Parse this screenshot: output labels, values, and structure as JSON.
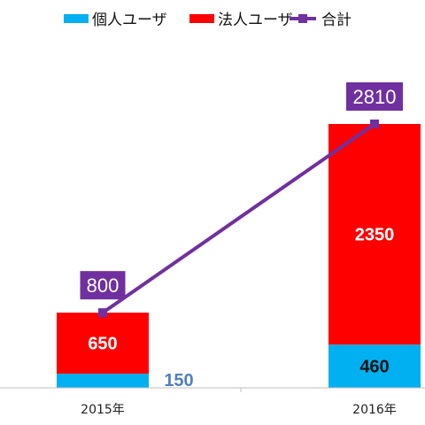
{
  "chart_data": {
    "type": "bar",
    "stacked": true,
    "title": "",
    "xlabel": "",
    "ylabel": "",
    "categories": [
      "2015年",
      "2016年"
    ],
    "series": [
      {
        "name": "個人ユーザ",
        "type": "bar",
        "color": "#00b0f0",
        "values": [
          150,
          460
        ]
      },
      {
        "name": "法人ユーザ",
        "type": "bar",
        "color": "#ff0000",
        "values": [
          650,
          2350
        ]
      },
      {
        "name": "合計",
        "type": "line",
        "color": "#7030a0",
        "values": [
          800,
          2810
        ]
      }
    ],
    "ylim": [
      0,
      3200
    ],
    "grid": false,
    "legend": "top"
  }
}
